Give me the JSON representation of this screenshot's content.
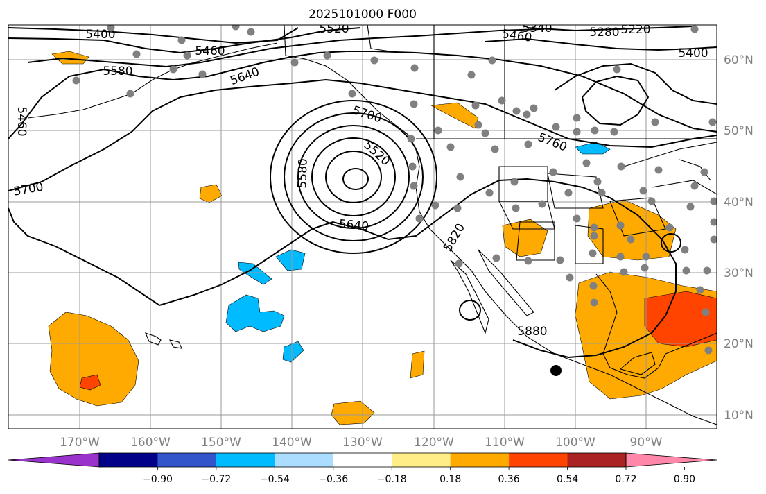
{
  "title": "2025101000 F000",
  "map": {
    "lon_ticks": [
      "170°W",
      "160°W",
      "150°W",
      "140°W",
      "130°W",
      "120°W",
      "110°W",
      "100°W",
      "90°W"
    ],
    "lat_ticks": [
      "60°N",
      "50°N",
      "40°N",
      "30°N",
      "20°N",
      "10°N"
    ],
    "contour_labels": [
      "5400",
      "5460",
      "5580",
      "5640",
      "5520",
      "5460",
      "5400",
      "5340",
      "5280",
      "5220",
      "5460",
      "5700",
      "5700",
      "5520",
      "5580",
      "5640",
      "5760",
      "5820",
      "5880"
    ],
    "land_line_color": "#000000",
    "station_color": "#808080"
  },
  "colorbar": {
    "colors": [
      "#9933cc",
      "#000088",
      "#3355cc",
      "#00bbff",
      "#aaddff",
      "#ffffff",
      "#ffee88",
      "#ffaa00",
      "#ff4400",
      "#aa2222",
      "#ff88aa"
    ],
    "tick_labels": [
      "−0.90",
      "−0.72",
      "−0.54",
      "−0.36",
      "−0.18",
      "0.18",
      "0.36",
      "0.54",
      "0.72",
      "0.90"
    ]
  }
}
